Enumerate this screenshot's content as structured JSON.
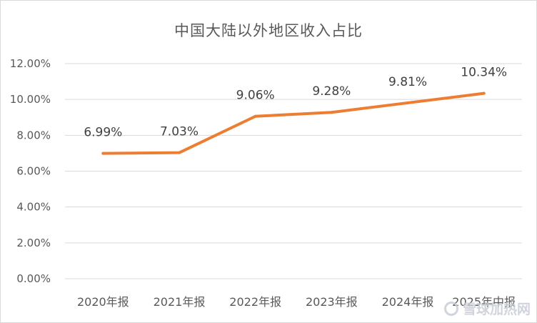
{
  "chart_data": {
    "type": "line",
    "title": "中国大陆以外地区收入占比",
    "categories": [
      "2020年报",
      "2021年报",
      "2022年报",
      "2023年报",
      "2024年报",
      "2025年中报"
    ],
    "series": [
      {
        "values": [
          6.99,
          7.03,
          9.06,
          9.28,
          9.81,
          10.34
        ],
        "data_labels": [
          "6.99%",
          "7.03%",
          "9.06%",
          "9.28%",
          "9.81%",
          "10.34%"
        ]
      }
    ],
    "ylim": [
      0,
      12
    ],
    "yticks": [
      0,
      2,
      4,
      6,
      8,
      10,
      12
    ],
    "ytick_labels": [
      "0.00%",
      "2.00%",
      "4.00%",
      "6.00%",
      "8.00%",
      "10.00%",
      "12.00%"
    ],
    "grid": true,
    "legend": "none",
    "colors": {
      "line": "#ed7d31",
      "grid": "#d9d9d9",
      "text": "#595959"
    }
  },
  "watermark": {
    "text": "雪球加热网",
    "icon": "snowball-logo-icon"
  }
}
